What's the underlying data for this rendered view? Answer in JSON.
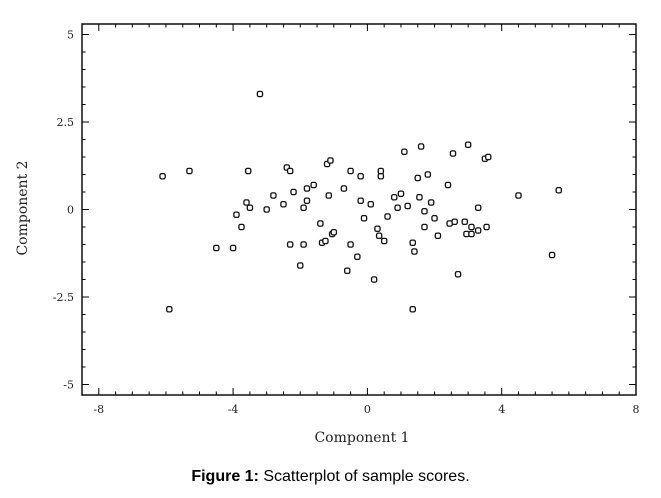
{
  "caption": {
    "label": "Figure 1:",
    "text": " Scatterplot of sample scores."
  },
  "chart_data": {
    "type": "scatter",
    "xlabel": "Component 1",
    "ylabel": "Component 2",
    "xlim": [
      -8.5,
      8.0
    ],
    "ylim": [
      -5.3,
      5.3
    ],
    "xticks": [
      -8,
      -4,
      0,
      4,
      8
    ],
    "xtick_labels": [
      "-8",
      "-4",
      "0",
      "4",
      "8"
    ],
    "yticks": [
      5,
      2.5,
      0,
      -2.5,
      -5
    ],
    "ytick_labels": [
      "5",
      "2.5",
      "0",
      "-2.5",
      "-5"
    ],
    "grid": false,
    "marker_color": "#111111",
    "points": [
      [
        -6.1,
        0.95
      ],
      [
        -5.9,
        -2.85
      ],
      [
        -5.3,
        1.1
      ],
      [
        -4.5,
        -1.1
      ],
      [
        -4.0,
        -1.1
      ],
      [
        -3.9,
        -0.15
      ],
      [
        -3.75,
        -0.5
      ],
      [
        -3.6,
        0.2
      ],
      [
        -3.55,
        1.1
      ],
      [
        -3.5,
        0.05
      ],
      [
        -3.2,
        3.3
      ],
      [
        -3.0,
        0.0
      ],
      [
        -2.8,
        0.4
      ],
      [
        -2.5,
        0.15
      ],
      [
        -2.4,
        1.2
      ],
      [
        -2.3,
        -1.0
      ],
      [
        -2.3,
        1.1
      ],
      [
        -2.2,
        0.5
      ],
      [
        -2.0,
        -1.6
      ],
      [
        -1.9,
        -1.0
      ],
      [
        -1.9,
        0.05
      ],
      [
        -1.8,
        0.6
      ],
      [
        -1.8,
        0.25
      ],
      [
        -1.6,
        0.7
      ],
      [
        -1.4,
        -0.4
      ],
      [
        -1.35,
        -0.95
      ],
      [
        -1.25,
        -0.9
      ],
      [
        -1.2,
        1.3
      ],
      [
        -1.15,
        0.4
      ],
      [
        -1.1,
        1.4
      ],
      [
        -1.05,
        -0.7
      ],
      [
        -1.0,
        -0.65
      ],
      [
        -0.7,
        0.6
      ],
      [
        -0.5,
        1.1
      ],
      [
        -0.5,
        -1.0
      ],
      [
        -0.6,
        -1.75
      ],
      [
        -0.3,
        -1.35
      ],
      [
        -0.2,
        0.95
      ],
      [
        -0.2,
        0.25
      ],
      [
        -0.1,
        -0.25
      ],
      [
        0.1,
        0.15
      ],
      [
        0.2,
        -2.0
      ],
      [
        0.3,
        -0.55
      ],
      [
        0.35,
        -0.75
      ],
      [
        0.4,
        0.95
      ],
      [
        0.4,
        1.1
      ],
      [
        0.5,
        -0.9
      ],
      [
        0.6,
        -0.2
      ],
      [
        0.8,
        0.35
      ],
      [
        0.9,
        0.05
      ],
      [
        1.0,
        0.45
      ],
      [
        1.1,
        1.65
      ],
      [
        1.2,
        0.1
      ],
      [
        1.35,
        -0.95
      ],
      [
        1.4,
        -1.2
      ],
      [
        1.35,
        -2.85
      ],
      [
        1.5,
        0.9
      ],
      [
        1.55,
        0.35
      ],
      [
        1.6,
        1.8
      ],
      [
        1.7,
        -0.5
      ],
      [
        1.7,
        -0.05
      ],
      [
        1.8,
        1.0
      ],
      [
        1.9,
        0.2
      ],
      [
        2.0,
        -0.25
      ],
      [
        2.1,
        -0.75
      ],
      [
        2.4,
        0.7
      ],
      [
        2.45,
        -0.4
      ],
      [
        2.55,
        1.6
      ],
      [
        2.6,
        -0.35
      ],
      [
        2.7,
        -1.85
      ],
      [
        2.9,
        -0.35
      ],
      [
        2.95,
        -0.7
      ],
      [
        3.0,
        1.85
      ],
      [
        3.1,
        -0.5
      ],
      [
        3.1,
        -0.7
      ],
      [
        3.3,
        0.05
      ],
      [
        3.3,
        -0.6
      ],
      [
        3.5,
        1.45
      ],
      [
        3.55,
        -0.5
      ],
      [
        3.6,
        1.5
      ],
      [
        4.5,
        0.4
      ],
      [
        5.5,
        -1.3
      ],
      [
        5.7,
        0.55
      ]
    ]
  }
}
